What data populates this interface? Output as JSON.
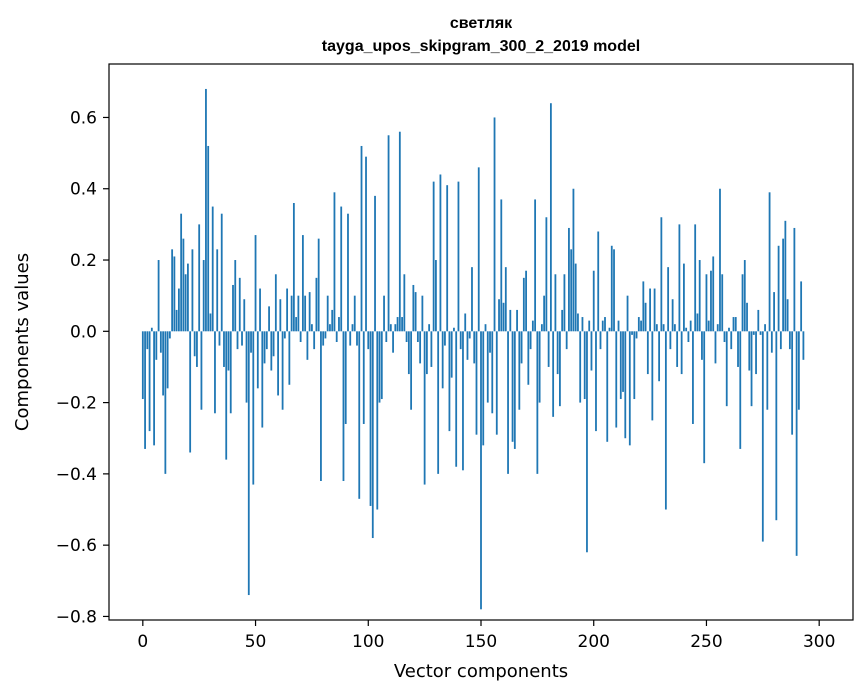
{
  "chart_data": {
    "type": "bar",
    "title": "светляк",
    "subtitle": "tayga_upos_skipgram_300_2_2019 model",
    "xlabel": "Vector components",
    "ylabel": "Components values",
    "xlim": [
      -15,
      315
    ],
    "ylim": [
      -0.81,
      0.75
    ],
    "x_ticks": [
      0,
      50,
      100,
      150,
      200,
      250,
      300
    ],
    "x_tick_labels": [
      "0",
      "50",
      "100",
      "150",
      "200",
      "250",
      "300"
    ],
    "y_ticks": [
      -0.8,
      -0.6,
      -0.4,
      -0.2,
      0.0,
      0.2,
      0.4,
      0.6
    ],
    "y_tick_labels": [
      "−0.8",
      "−0.6",
      "−0.4",
      "−0.2",
      "0.0",
      "0.2",
      "0.4",
      "0.6"
    ],
    "bar_color": "#1f77b4",
    "values": [
      -0.19,
      -0.33,
      -0.05,
      -0.28,
      0.01,
      -0.32,
      -0.08,
      0.2,
      -0.06,
      -0.18,
      -0.4,
      -0.16,
      -0.02,
      0.23,
      0.21,
      0.06,
      0.12,
      0.33,
      0.26,
      0.16,
      0.19,
      -0.34,
      0.23,
      -0.07,
      -0.1,
      0.3,
      -0.22,
      0.2,
      0.68,
      0.52,
      0.05,
      0.35,
      -0.23,
      0.23,
      -0.04,
      0.33,
      -0.1,
      -0.36,
      -0.11,
      -0.23,
      0.13,
      0.2,
      -0.05,
      0.15,
      -0.04,
      0.09,
      -0.2,
      -0.74,
      -0.06,
      -0.43,
      0.27,
      -0.16,
      0.12,
      -0.27,
      -0.09,
      -0.05,
      0.07,
      -0.11,
      -0.07,
      0.16,
      -0.18,
      0.09,
      -0.22,
      -0.02,
      0.12,
      -0.15,
      0.1,
      0.36,
      0.04,
      0.1,
      -0.03,
      0.27,
      0.1,
      -0.08,
      0.11,
      0.02,
      -0.05,
      0.15,
      0.26,
      -0.42,
      -0.04,
      -0.02,
      0.1,
      0.02,
      0.06,
      0.39,
      -0.03,
      0.04,
      0.35,
      -0.42,
      -0.26,
      0.33,
      -0.04,
      0.02,
      0.1,
      -0.04,
      -0.47,
      0.52,
      -0.26,
      0.49,
      -0.05,
      -0.49,
      -0.58,
      0.38,
      -0.5,
      -0.2,
      -0.19,
      0.1,
      -0.03,
      0.55,
      0.02,
      -0.06,
      0.02,
      0.04,
      0.56,
      0.04,
      0.16,
      -0.03,
      -0.12,
      -0.22,
      0.13,
      0.11,
      -0.03,
      -0.09,
      0.1,
      -0.43,
      -0.12,
      0.02,
      -0.1,
      0.42,
      0.2,
      -0.4,
      0.44,
      -0.16,
      -0.04,
      0.41,
      -0.28,
      -0.13,
      0.01,
      -0.38,
      0.42,
      -0.05,
      -0.39,
      0.05,
      -0.08,
      -0.02,
      0.18,
      -0.09,
      -0.29,
      0.46,
      -0.78,
      -0.32,
      0.02,
      -0.2,
      -0.06,
      -0.23,
      0.6,
      -0.29,
      0.09,
      0.37,
      0.08,
      0.18,
      -0.4,
      0.06,
      -0.31,
      -0.33,
      0.06,
      -0.22,
      -0.09,
      0.15,
      0.17,
      -0.15,
      -0.05,
      0.03,
      0.37,
      -0.4,
      -0.2,
      0.02,
      0.1,
      0.32,
      -0.1,
      0.64,
      -0.24,
      0.16,
      -0.12,
      -0.21,
      0.06,
      0.16,
      -0.05,
      0.29,
      0.23,
      0.4,
      0.19,
      0.05,
      -0.2,
      0.04,
      -0.19,
      -0.62,
      0.03,
      -0.11,
      0.17,
      -0.28,
      0.28,
      -0.05,
      0.03,
      0.04,
      -0.31,
      0.01,
      0.24,
      0.23,
      -0.27,
      0.03,
      -0.19,
      -0.17,
      -0.3,
      0.1,
      -0.32,
      -0.01,
      -0.19,
      -0.02,
      0.04,
      0.03,
      0.14,
      0.08,
      -0.12,
      0.12,
      -0.25,
      0.12,
      0.02,
      -0.14,
      0.32,
      0.02,
      -0.5,
      0.18,
      -0.05,
      0.09,
      0.02,
      -0.1,
      0.3,
      -0.12,
      0.19,
      0.01,
      -0.03,
      0.03,
      -0.26,
      0.3,
      0.05,
      0.2,
      -0.08,
      -0.37,
      0.16,
      0.03,
      0.17,
      0.21,
      -0.09,
      0.02,
      0.4,
      0.16,
      -0.03,
      -0.21,
      0.01,
      -0.05,
      0.04,
      0.04,
      -0.1,
      -0.33,
      0.16,
      0.2,
      0.08,
      -0.11,
      -0.21,
      -0.01,
      -0.12,
      0.06,
      -0.01,
      -0.59,
      0.02,
      -0.22,
      0.39,
      -0.06,
      0.11,
      -0.53,
      0.24,
      -0.05,
      0.26,
      0.31,
      0.09,
      -0.05,
      -0.29,
      0.29,
      -0.63,
      -0.22,
      0.14,
      -0.08
    ]
  }
}
